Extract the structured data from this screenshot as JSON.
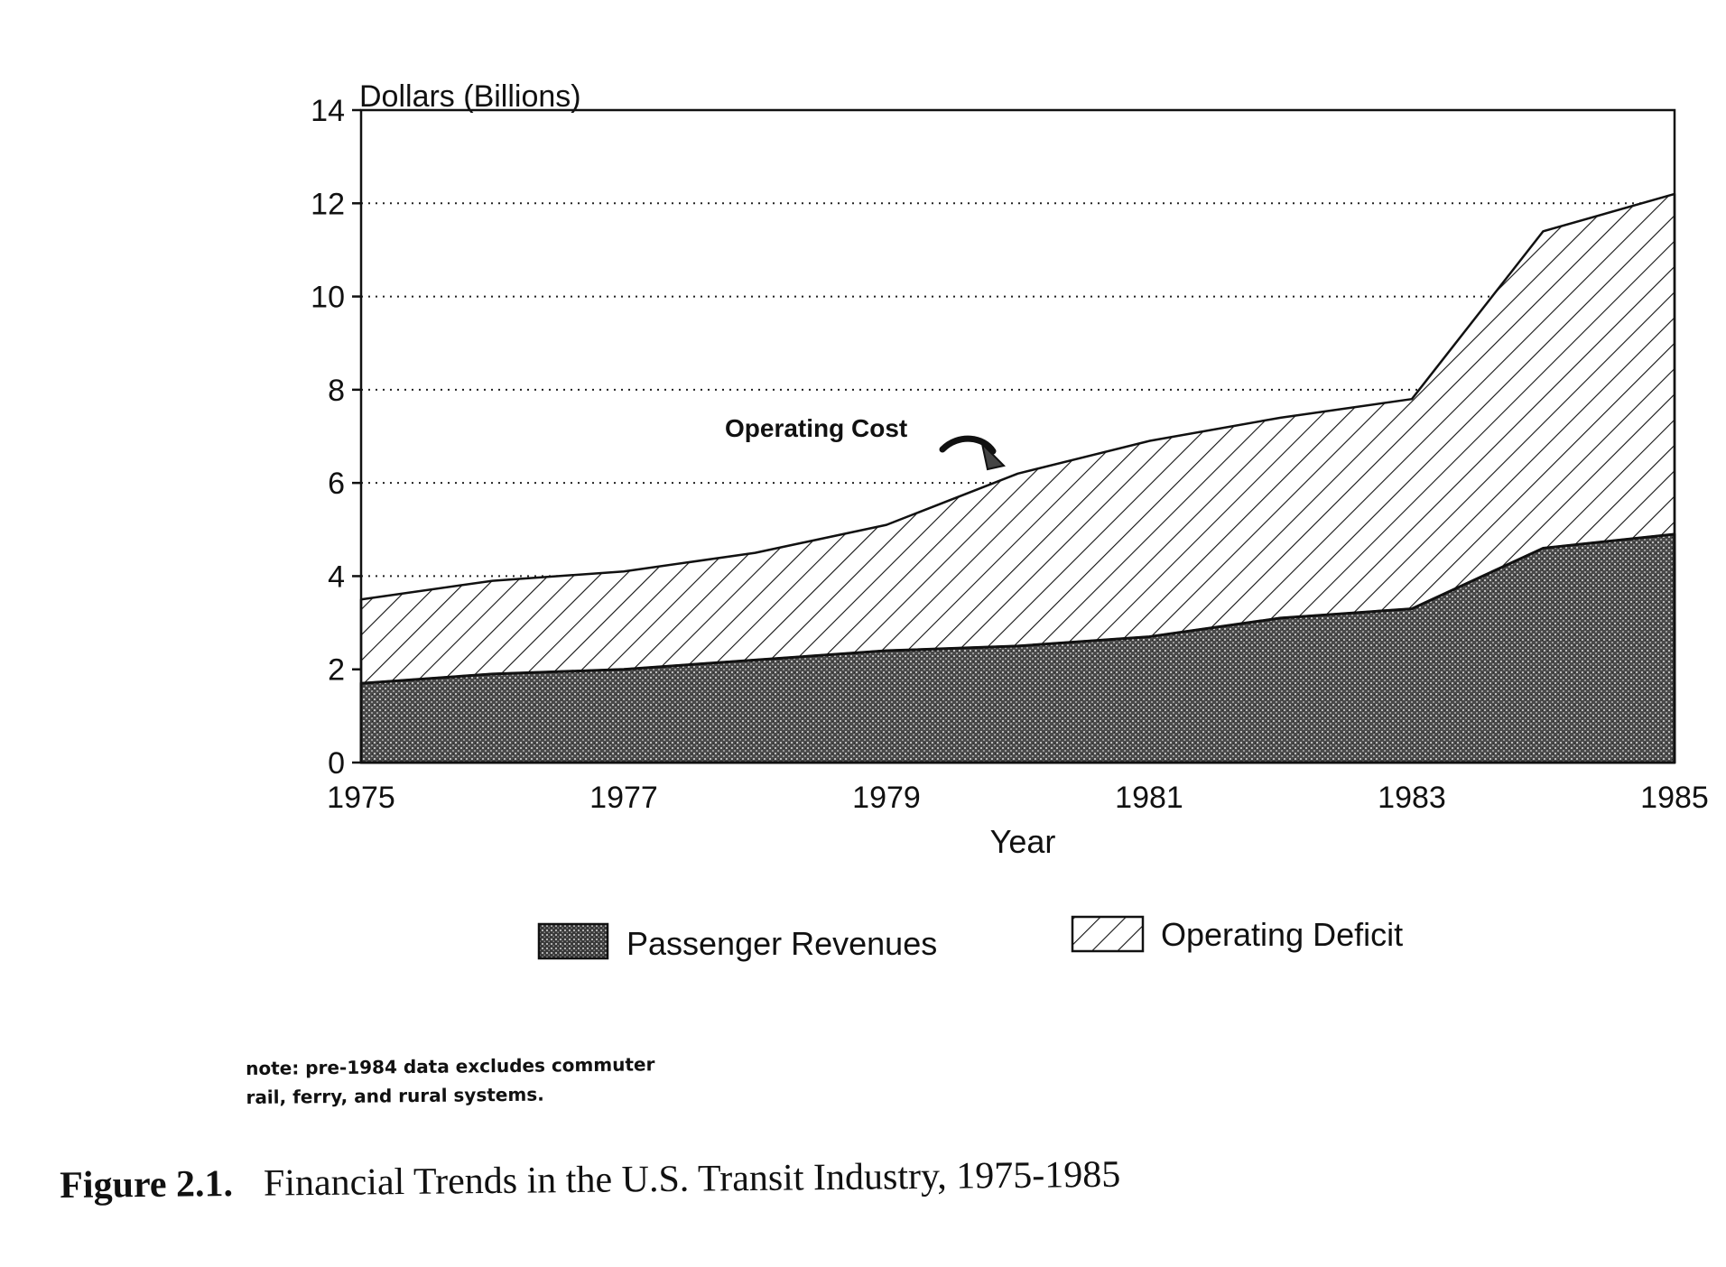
{
  "chart_data": {
    "type": "area",
    "stacked": true,
    "x": [
      1975,
      1976,
      1977,
      1978,
      1979,
      1980,
      1981,
      1982,
      1983,
      1984,
      1985
    ],
    "x_ticks": [
      "1975",
      "1977",
      "1979",
      "1981",
      "1983",
      "1985"
    ],
    "y_ticks": [
      "0",
      "2",
      "4",
      "6",
      "8",
      "10",
      "12",
      "14"
    ],
    "ylim": [
      0,
      14
    ],
    "ylabel": "Dollars (Billions)",
    "xlabel": "Year",
    "grid": "dotted horizontal lines",
    "legend_placement": "bottom",
    "series": [
      {
        "name": "Passenger Revenues",
        "fill": "dark stipple",
        "values": [
          1.7,
          1.9,
          2.0,
          2.2,
          2.4,
          2.5,
          2.7,
          3.1,
          3.3,
          4.6,
          4.9
        ]
      },
      {
        "name": "Operating Deficit",
        "fill": "diagonal hatch",
        "values": [
          1.8,
          2.0,
          2.1,
          2.3,
          2.7,
          3.7,
          4.2,
          4.3,
          4.5,
          6.8,
          7.3
        ]
      }
    ],
    "annotation": "Operating Cost"
  },
  "note": {
    "line1": "note: pre-1984 data excludes commuter",
    "line2": "rail, ferry, and rural systems."
  },
  "caption": {
    "figure": "Figure 2.1.",
    "text": "Financial Trends in the U.S. Transit Industry, 1975-1985"
  },
  "colors": {
    "ink": "#111111",
    "stipple": "#555555",
    "background": "#ffffff"
  }
}
